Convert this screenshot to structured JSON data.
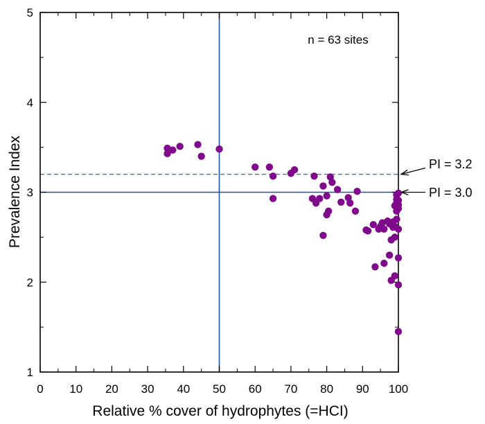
{
  "chart_data": {
    "type": "scatter",
    "xlabel": "Relative % cover of hydrophytes (=HCI)",
    "ylabel": "Prevalence Index",
    "xlim": [
      0,
      100
    ],
    "ylim": [
      1,
      5
    ],
    "xticks": [
      0,
      10,
      20,
      30,
      40,
      50,
      60,
      70,
      80,
      90,
      100
    ],
    "yticks": [
      1,
      2,
      3,
      4,
      5
    ],
    "annotation": "n = 63 sites",
    "reference_lines": [
      {
        "orientation": "vertical",
        "value": 50,
        "style": "solid"
      },
      {
        "orientation": "horizontal",
        "value": 3.0,
        "style": "solid",
        "label": "PI = 3.0"
      },
      {
        "orientation": "horizontal",
        "value": 3.2,
        "style": "dashed",
        "label": "PI = 3.2"
      }
    ],
    "colors": {
      "points": "#800a8c",
      "lines": "#1f4fa8",
      "dashed": "#3a7aa6"
    },
    "points": [
      [
        35.5,
        3.49
      ],
      [
        35.5,
        3.43
      ],
      [
        37,
        3.47
      ],
      [
        39,
        3.51
      ],
      [
        44,
        3.53
      ],
      [
        45,
        3.4
      ],
      [
        50,
        3.48
      ],
      [
        60,
        3.28
      ],
      [
        64,
        3.28
      ],
      [
        65,
        3.18
      ],
      [
        65,
        2.93
      ],
      [
        70,
        3.21
      ],
      [
        71,
        3.25
      ],
      [
        76,
        2.93
      ],
      [
        76.5,
        3.18
      ],
      [
        77,
        2.88
      ],
      [
        78,
        2.93
      ],
      [
        79,
        3.07
      ],
      [
        79,
        2.52
      ],
      [
        80,
        2.96
      ],
      [
        80,
        2.75
      ],
      [
        80.5,
        2.79
      ],
      [
        81,
        3.17
      ],
      [
        81.5,
        3.11
      ],
      [
        83,
        3.03
      ],
      [
        84,
        2.89
      ],
      [
        86,
        2.94
      ],
      [
        86.5,
        2.88
      ],
      [
        88,
        2.79
      ],
      [
        88.5,
        3.01
      ],
      [
        91,
        2.58
      ],
      [
        91.5,
        2.57
      ],
      [
        93,
        2.64
      ],
      [
        93.5,
        2.17
      ],
      [
        94.5,
        2.59
      ],
      [
        95,
        2.62
      ],
      [
        95.5,
        2.66
      ],
      [
        96,
        2.21
      ],
      [
        96,
        2.59
      ],
      [
        97,
        2.68
      ],
      [
        97.5,
        2.3
      ],
      [
        97.5,
        2.65
      ],
      [
        98,
        2.47
      ],
      [
        98,
        2.02
      ],
      [
        98.5,
        2.67
      ],
      [
        98.5,
        2.61
      ],
      [
        99,
        2.62
      ],
      [
        99,
        2.5
      ],
      [
        99,
        2.85
      ],
      [
        99,
        2.07
      ],
      [
        99.5,
        2.79
      ],
      [
        99.5,
        2.92
      ],
      [
        99.5,
        2.97
      ],
      [
        99.5,
        2.88
      ],
      [
        100,
        2.99
      ],
      [
        100,
        2.91
      ],
      [
        100,
        2.86
      ],
      [
        100,
        2.82
      ],
      [
        100,
        2.59
      ],
      [
        100,
        2.27
      ],
      [
        100,
        1.97
      ],
      [
        100,
        1.45
      ],
      [
        99.5,
        2.7
      ]
    ]
  }
}
